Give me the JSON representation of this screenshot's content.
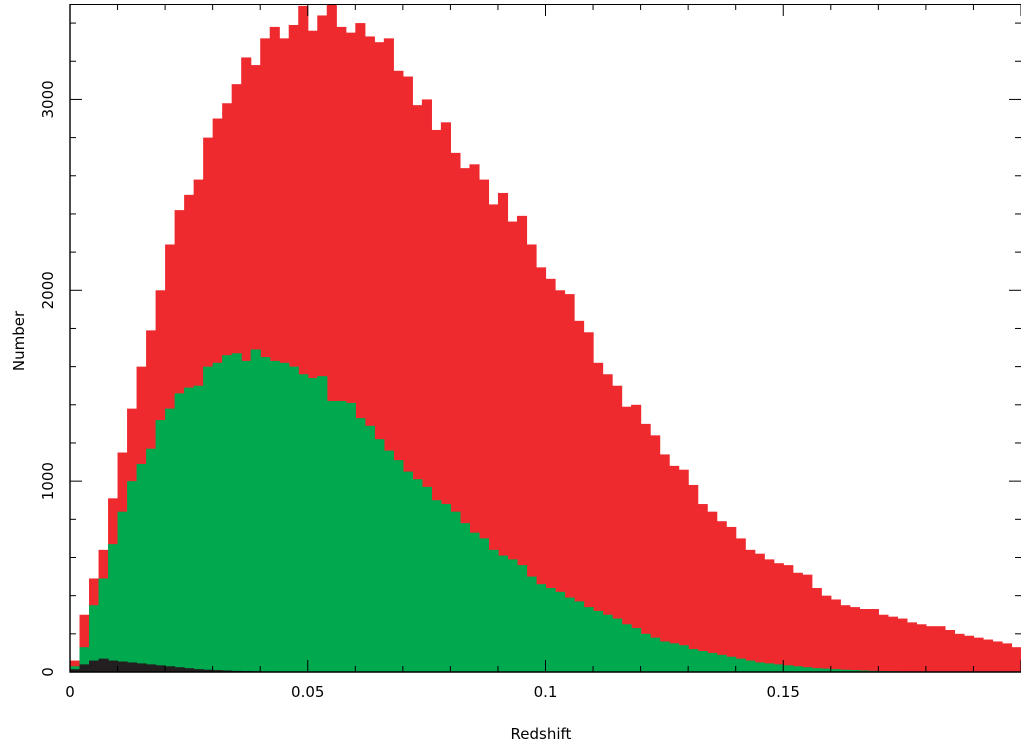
{
  "chart_data": {
    "type": "bar",
    "title": "",
    "xlabel": "Redshift",
    "ylabel": "Number",
    "xlim": [
      0,
      0.2
    ],
    "ylim": [
      0,
      3500
    ],
    "bin_width": 0.002,
    "x_ticks": [
      0,
      0.05,
      0.1,
      0.15
    ],
    "x_tick_labels": [
      "0",
      "0.05",
      "0.1",
      "0.15"
    ],
    "y_ticks": [
      0,
      1000,
      2000,
      3000
    ],
    "y_tick_labels": [
      "0",
      "1000",
      "2000",
      "3000"
    ],
    "grid": false,
    "legend": "none",
    "bin_starts": [
      0,
      0.002,
      0.004,
      0.006,
      0.008,
      0.01,
      0.012,
      0.014,
      0.016,
      0.018,
      0.02,
      0.022,
      0.024,
      0.026,
      0.028,
      0.03,
      0.032,
      0.034,
      0.036,
      0.038,
      0.04,
      0.042,
      0.044,
      0.046,
      0.048,
      0.05,
      0.052,
      0.054,
      0.056,
      0.058,
      0.06,
      0.062,
      0.064,
      0.066,
      0.068,
      0.07,
      0.072,
      0.074,
      0.076,
      0.078,
      0.08,
      0.082,
      0.084,
      0.086,
      0.088,
      0.09,
      0.092,
      0.094,
      0.096,
      0.098,
      0.1,
      0.102,
      0.104,
      0.106,
      0.108,
      0.11,
      0.112,
      0.114,
      0.116,
      0.118,
      0.12,
      0.122,
      0.124,
      0.126,
      0.128,
      0.13,
      0.132,
      0.134,
      0.136,
      0.138,
      0.14,
      0.142,
      0.144,
      0.146,
      0.148,
      0.15,
      0.152,
      0.154,
      0.156,
      0.158,
      0.16,
      0.162,
      0.164,
      0.166,
      0.168,
      0.17,
      0.172,
      0.174,
      0.176,
      0.178,
      0.18,
      0.182,
      0.184,
      0.186,
      0.188,
      0.19,
      0.192,
      0.194,
      0.196,
      0.198
    ],
    "series": [
      {
        "color": "#ee2a2f",
        "values": [
          60,
          300,
          490,
          640,
          910,
          1150,
          1380,
          1600,
          1790,
          2000,
          2240,
          2420,
          2500,
          2580,
          2800,
          2900,
          2980,
          3080,
          3220,
          3180,
          3320,
          3380,
          3320,
          3390,
          3490,
          3360,
          3440,
          3520,
          3380,
          3350,
          3400,
          3330,
          3300,
          3320,
          3150,
          3120,
          2970,
          3000,
          2840,
          2880,
          2720,
          2640,
          2660,
          2580,
          2450,
          2510,
          2360,
          2390,
          2240,
          2120,
          2060,
          2000,
          1980,
          1840,
          1780,
          1620,
          1560,
          1500,
          1390,
          1400,
          1300,
          1240,
          1140,
          1080,
          1060,
          980,
          880,
          840,
          790,
          760,
          700,
          640,
          620,
          590,
          570,
          560,
          520,
          510,
          440,
          400,
          380,
          350,
          340,
          330,
          330,
          300,
          290,
          280,
          260,
          250,
          240,
          240,
          220,
          200,
          190,
          180,
          170,
          160,
          150,
          130
        ]
      },
      {
        "color": "#00a94e",
        "values": [
          30,
          130,
          350,
          490,
          670,
          840,
          1000,
          1090,
          1170,
          1320,
          1380,
          1460,
          1490,
          1500,
          1600,
          1620,
          1660,
          1670,
          1630,
          1690,
          1650,
          1630,
          1620,
          1600,
          1560,
          1540,
          1550,
          1420,
          1420,
          1410,
          1330,
          1290,
          1220,
          1160,
          1110,
          1050,
          1010,
          970,
          900,
          880,
          840,
          780,
          730,
          700,
          640,
          610,
          590,
          560,
          500,
          460,
          440,
          420,
          390,
          370,
          340,
          320,
          300,
          280,
          250,
          230,
          200,
          180,
          160,
          150,
          140,
          120,
          110,
          100,
          90,
          80,
          70,
          60,
          50,
          45,
          40,
          35,
          30,
          25,
          20,
          18,
          15,
          12,
          10,
          8,
          6,
          5,
          4,
          3,
          2,
          2,
          1,
          1,
          1,
          1,
          0,
          0,
          0,
          0,
          0,
          0
        ]
      },
      {
        "color": "#231f20",
        "values": [
          15,
          40,
          60,
          70,
          60,
          55,
          50,
          45,
          40,
          35,
          30,
          25,
          20,
          15,
          12,
          10,
          8,
          6,
          5,
          4,
          3,
          2,
          2,
          1,
          1,
          0,
          0,
          0,
          0,
          0,
          0,
          0,
          0,
          0,
          0,
          0,
          0,
          0,
          0,
          0,
          0,
          0,
          0,
          0,
          0,
          0,
          0,
          0,
          0,
          0,
          0,
          0,
          0,
          0,
          0,
          0,
          0,
          0,
          0,
          0,
          0,
          0,
          0,
          0,
          0,
          0,
          0,
          0,
          0,
          0,
          0,
          0,
          0,
          0,
          0,
          0,
          0,
          0,
          0,
          0,
          0,
          0,
          0,
          0,
          0,
          0,
          0,
          0,
          0,
          0,
          0,
          0,
          0,
          0,
          0,
          0,
          0,
          0,
          0,
          0
        ]
      }
    ]
  }
}
